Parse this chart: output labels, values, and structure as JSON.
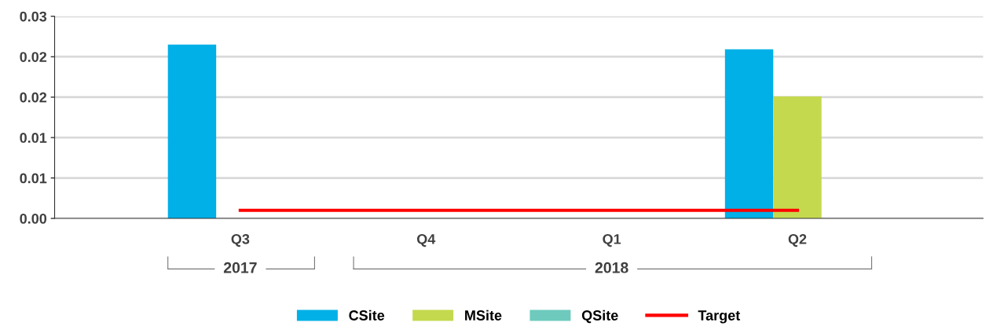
{
  "chart_data": {
    "type": "bar",
    "categories": [
      "Q3",
      "Q4",
      "Q1",
      "Q2"
    ],
    "series": [
      {
        "name": "CSite",
        "color": "#00b0e6",
        "values": [
          0.0258,
          null,
          null,
          0.0251
        ]
      },
      {
        "name": "MSite",
        "color": "#c5d94e",
        "values": [
          null,
          null,
          null,
          0.0181
        ]
      },
      {
        "name": "QSite",
        "color": "#6dcabd",
        "values": [
          null,
          null,
          null,
          null
        ]
      },
      {
        "name": "Target",
        "type": "line",
        "color": "#ff0000",
        "values": [
          0.0012,
          0.0012,
          0.0012,
          0.0012
        ]
      }
    ],
    "annotations": [
      "2017",
      "2018"
    ],
    "ylim": [
      0,
      0.03
    ],
    "yticks": [
      {
        "value": 0,
        "label": "0.00"
      },
      {
        "value": 0.006,
        "label": "0.01"
      },
      {
        "value": 0.012,
        "label": "0.01"
      },
      {
        "value": 0.018,
        "label": "0.02"
      },
      {
        "value": 0.024,
        "label": "0.02"
      },
      {
        "value": 0.03,
        "label": "0.03"
      }
    ],
    "grid": "y",
    "legend": "bottom",
    "marker": "none",
    "line_style": "solid"
  }
}
